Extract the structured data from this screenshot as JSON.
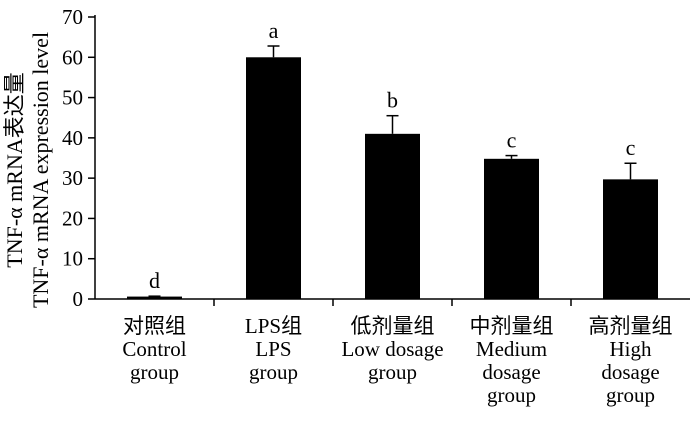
{
  "chart_data": {
    "type": "bar",
    "ylabel_lines": [
      "TNF-α mRNA表达量",
      "TNF-α mRNA expression level"
    ],
    "ylim": [
      0,
      70
    ],
    "yticks": [
      0,
      10,
      20,
      30,
      40,
      50,
      60,
      70
    ],
    "grid": false,
    "legend": "none",
    "bar_color": "#000000",
    "categories": [
      {
        "lines": [
          "对照组",
          "Control",
          "group"
        ]
      },
      {
        "lines": [
          "LPS组",
          "LPS",
          "group"
        ]
      },
      {
        "lines": [
          "低剂量组",
          "Low dosage",
          "group"
        ]
      },
      {
        "lines": [
          "中剂量组",
          "Medium",
          "dosage",
          "group"
        ]
      },
      {
        "lines": [
          "高剂量组",
          "High",
          "dosage",
          "group"
        ]
      }
    ],
    "values": [
      0.6,
      60.0,
      41.0,
      34.8,
      29.7
    ],
    "errors": [
      0.1,
      2.8,
      4.5,
      0.8,
      4.0
    ],
    "significance_letters": [
      "d",
      "a",
      "b",
      "c",
      "c"
    ]
  }
}
